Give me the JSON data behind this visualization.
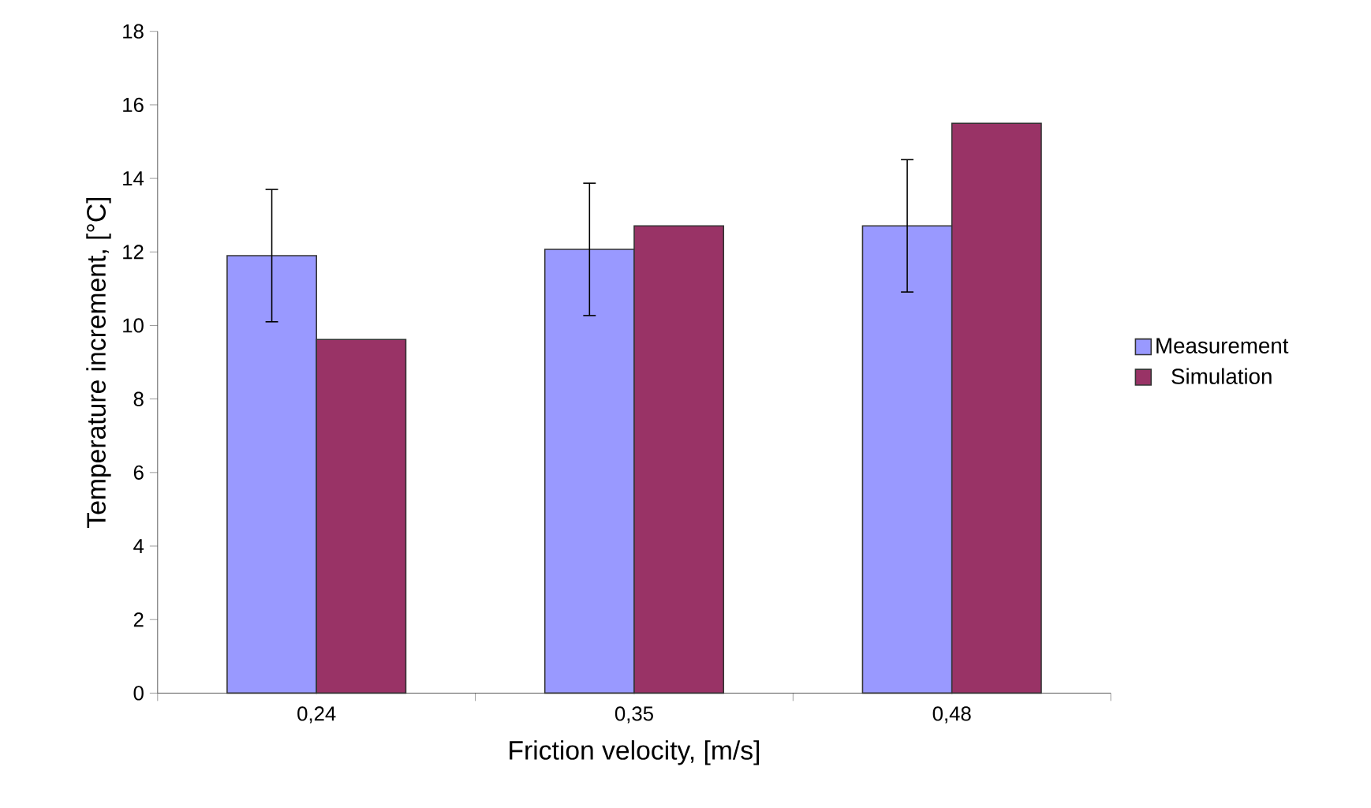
{
  "chart_data": {
    "type": "bar",
    "xlabel": "Friction velocity, [m/s]",
    "ylabel": "Temperature increment, [°C]",
    "categories": [
      "0,24",
      "0,35",
      "0,48"
    ],
    "series": [
      {
        "name": "Measurement",
        "color": "#9999ff",
        "values": [
          11.9,
          12.07,
          12.71
        ],
        "errors": [
          1.8,
          1.8,
          1.8
        ]
      },
      {
        "name": "Simulation",
        "color": "#993366",
        "values": [
          9.62,
          12.71,
          15.5
        ]
      }
    ],
    "ylim": [
      0,
      18
    ],
    "yticks": [
      0,
      2,
      4,
      6,
      8,
      10,
      12,
      14,
      16,
      18
    ],
    "legend": "right"
  }
}
